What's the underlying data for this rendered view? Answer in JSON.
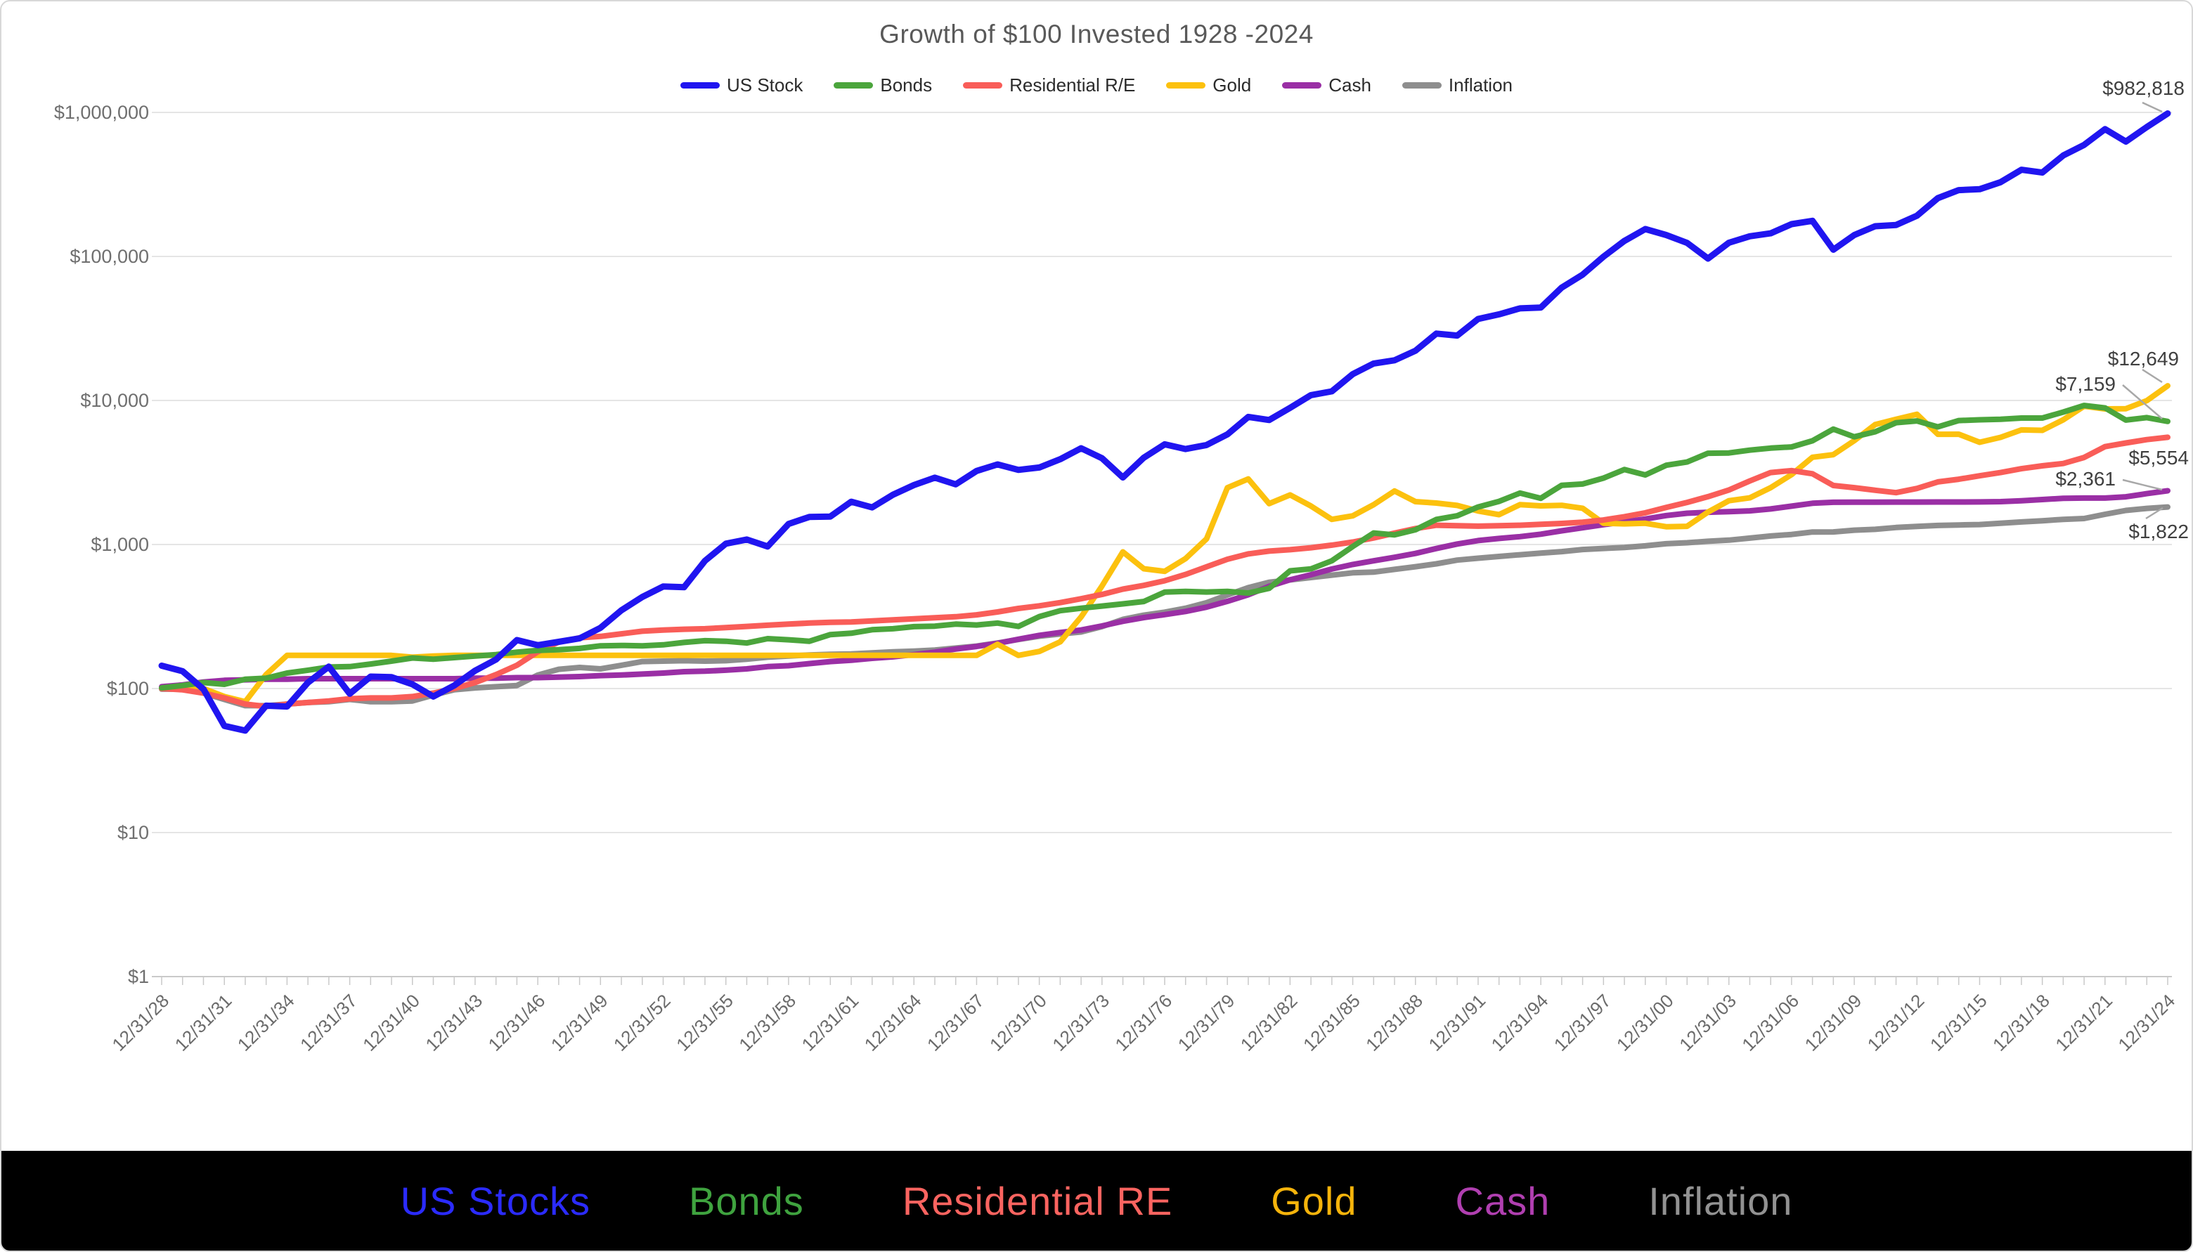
{
  "title": "Growth of $100  Invested 1928 -2024",
  "legend": [
    {
      "label": "US Stock",
      "color": "#2015f0"
    },
    {
      "label": "Bonds",
      "color": "#4ba53c"
    },
    {
      "label": "Residential R/E",
      "color": "#f95d58"
    },
    {
      "label": "Gold",
      "color": "#fcc10e"
    },
    {
      "label": "Cash",
      "color": "#9a2fa5"
    },
    {
      "label": "Inflation",
      "color": "#8e8e8e"
    }
  ],
  "footer": {
    "items": [
      {
        "label": "US Stocks",
        "color": "#2b2bff"
      },
      {
        "label": "Bonds",
        "color": "#3fa33f"
      },
      {
        "label": "Residential RE",
        "color": "#fb6460"
      },
      {
        "label": "Gold",
        "color": "#f6b40b"
      },
      {
        "label": "Cash",
        "color": "#b03fb0"
      },
      {
        "label": "Inflation",
        "color": "#929292"
      }
    ]
  },
  "chart_data": {
    "type": "line",
    "title": "Growth of $100  Invested 1928 -2024",
    "y_scale": "log",
    "ylim": [
      1,
      1000000
    ],
    "grid": true,
    "legend_position": "top",
    "start_year": 1928,
    "end_year": 2024,
    "y_gridlines": [
      {
        "value": 1,
        "label": "$1"
      },
      {
        "value": 10,
        "label": "$10"
      },
      {
        "value": 100,
        "label": "$100"
      },
      {
        "value": 1000,
        "label": "$1,000"
      },
      {
        "value": 10000,
        "label": "$10,000"
      },
      {
        "value": 100000,
        "label": "$100,000"
      },
      {
        "value": 1000000,
        "label": "$1,000,000"
      }
    ],
    "x_tick_labels": [
      "12/31/28",
      "12/31/31",
      "12/31/34",
      "12/31/37",
      "12/31/40",
      "12/31/43",
      "12/31/46",
      "12/31/49",
      "12/31/52",
      "12/31/55",
      "12/31/58",
      "12/31/61",
      "12/31/64",
      "12/31/67",
      "12/31/70",
      "12/31/73",
      "12/31/76",
      "12/31/79",
      "12/31/82",
      "12/31/85",
      "12/31/88",
      "12/31/91",
      "12/31/94",
      "12/31/97",
      "12/31/00",
      "12/31/03",
      "12/31/06",
      "12/31/09",
      "12/31/12",
      "12/31/15",
      "12/31/18",
      "12/31/21",
      "12/31/24"
    ],
    "series": [
      {
        "name": "US Stock",
        "color": "#2015f0",
        "values": [
          144,
          132,
          99,
          55,
          51,
          76,
          75,
          110,
          142,
          92,
          121,
          120,
          107,
          88,
          105,
          133,
          159,
          217,
          200,
          211,
          223,
          264,
          349,
          432,
          511,
          505,
          771,
          1014,
          1083,
          969,
          1388,
          1555,
          1564,
          1982,
          1809,
          2218,
          2587,
          2909,
          2616,
          3241,
          3599,
          3295,
          3426,
          3912,
          4658,
          3973,
          2921,
          4006,
          4960,
          4604,
          4907,
          5810,
          7690,
          7314,
          8884,
          10886,
          11566,
          15230,
          18062,
          19009,
          22155,
          29149,
          28237,
          36819,
          39621,
          43601,
          44175,
          60775,
          74718,
          99640,
          128108,
          155027,
          140934,
          124170,
          96730,
          124462,
          137999,
          144757,
          167601,
          176799,
          111386,
          140866,
          162078,
          165449,
          191918,
          254059,
          288870,
          292890,
          327937,
          399686,
          382162,
          502513,
          594970,
          765691,
          627102,
          791931,
          982818
        ]
      },
      {
        "name": "Bonds",
        "color": "#4ba53c",
        "values": [
          101,
          105,
          110,
          107,
          116,
          118,
          128,
          134,
          141,
          142,
          148,
          155,
          163,
          160,
          164,
          168,
          172,
          179,
          184,
          186,
          190,
          198,
          199,
          198,
          201,
          209,
          215,
          213,
          207,
          222,
          218,
          213,
          237,
          242,
          256,
          260,
          269,
          271,
          280,
          276,
          285,
          270,
          316,
          347,
          361,
          374,
          387,
          402,
          467,
          473,
          468,
          473,
          460,
          496,
          656,
          677,
          771,
          969,
          1202,
          1167,
          1266,
          1493,
          1584,
          1821,
          1994,
          2276,
          2093,
          2577,
          2630,
          2891,
          3314,
          3041,
          3549,
          3737,
          4303,
          4319,
          4522,
          4668,
          4759,
          5247,
          6325,
          5597,
          6062,
          7006,
          7210,
          6555,
          7253,
          7346,
          7398,
          7555,
          7552,
          8306,
          9229,
          8881,
          7312,
          7602,
          7159
        ]
      },
      {
        "name": "Residential R/E",
        "color": "#f95d58",
        "values": [
          100,
          98,
          93,
          86,
          78,
          75,
          78,
          80,
          82,
          85,
          86,
          86,
          88,
          93,
          100,
          110,
          125,
          145,
          180,
          210,
          225,
          230,
          240,
          250,
          255,
          258,
          260,
          265,
          270,
          275,
          280,
          285,
          288,
          290,
          295,
          300,
          305,
          310,
          315,
          325,
          340,
          360,
          375,
          395,
          420,
          450,
          490,
          520,
          560,
          620,
          700,
          790,
          860,
          900,
          920,
          950,
          990,
          1040,
          1110,
          1200,
          1290,
          1360,
          1350,
          1340,
          1350,
          1360,
          1380,
          1400,
          1430,
          1480,
          1560,
          1660,
          1810,
          1960,
          2150,
          2390,
          2760,
          3160,
          3260,
          3100,
          2570,
          2480,
          2380,
          2290,
          2450,
          2720,
          2840,
          3000,
          3160,
          3360,
          3520,
          3650,
          4020,
          4780,
          5070,
          5350,
          5554
        ]
      },
      {
        "name": "Gold",
        "color": "#fcc10e",
        "values": [
          100,
          100,
          100,
          88,
          81,
          125,
          170,
          170,
          170,
          170,
          170,
          170,
          165,
          168,
          170,
          170,
          170,
          170,
          170,
          170,
          170,
          170,
          170,
          170,
          170,
          170,
          170,
          170,
          170,
          170,
          170,
          170,
          170,
          170,
          170,
          170,
          170,
          170,
          170,
          170,
          203,
          170,
          181,
          211,
          314,
          515,
          889,
          679,
          651,
          798,
          1093,
          2477,
          2853,
          1923,
          2210,
          1850,
          1495,
          1582,
          1891,
          2354,
          1984,
          1940,
          1868,
          1709,
          1611,
          1890,
          1854,
          1872,
          1786,
          1404,
          1392,
          1404,
          1328,
          1338,
          1680,
          2014,
          2107,
          2482,
          3057,
          4034,
          4208,
          5261,
          6800,
          7407,
          8019,
          5827,
          5834,
          5128,
          5544,
          6246,
          6201,
          7341,
          9132,
          8737,
          8768,
          9978,
          12649
        ]
      },
      {
        "name": "Cash",
        "color": "#9a2fa5",
        "values": [
          103,
          106,
          111,
          114,
          115,
          116,
          116,
          117,
          117,
          117,
          117,
          117,
          117,
          117,
          117,
          118,
          118,
          119,
          119,
          120,
          121,
          123,
          124,
          126,
          128,
          131,
          132,
          134,
          137,
          142,
          144,
          149,
          154,
          157,
          162,
          166,
          172,
          179,
          188,
          196,
          206,
          220,
          234,
          245,
          255,
          272,
          293,
          311,
          326,
          343,
          367,
          403,
          448,
          512,
          569,
          617,
          676,
          727,
          771,
          815,
          867,
          938,
          1008,
          1065,
          1101,
          1134,
          1180,
          1245,
          1307,
          1373,
          1438,
          1503,
          1589,
          1648,
          1675,
          1692,
          1713,
          1765,
          1847,
          1933,
          1964,
          1967,
          1969,
          1970,
          1971,
          1972,
          1973,
          1975,
          1985,
          2013,
          2052,
          2094,
          2101,
          2102,
          2145,
          2254,
          2361
        ]
      },
      {
        "name": "Inflation",
        "color": "#8e8e8e",
        "values": [
          99,
          99,
          93,
          84,
          76,
          76,
          78,
          80,
          81,
          84,
          81,
          81,
          82,
          90,
          98,
          101,
          103,
          105,
          124,
          136,
          140,
          137,
          145,
          154,
          155,
          156,
          155,
          156,
          160,
          165,
          168,
          171,
          173,
          174,
          177,
          180,
          182,
          185,
          191,
          197,
          207,
          219,
          231,
          239,
          247,
          269,
          302,
          323,
          339,
          361,
          394,
          446,
          502,
          547,
          568,
          590,
          613,
          636,
          643,
          672,
          701,
          734,
          779,
          803,
          826,
          849,
          871,
          893,
          923,
          939,
          954,
          979,
          1012,
          1028,
          1053,
          1072,
          1107,
          1145,
          1174,
          1222,
          1223,
          1257,
          1275,
          1313,
          1336,
          1356,
          1366,
          1376,
          1405,
          1434,
          1462,
          1495,
          1515,
          1621,
          1725,
          1781,
          1822
        ]
      }
    ],
    "end_labels": [
      {
        "series": "US Stock",
        "text": "$982,818"
      },
      {
        "series": "Gold",
        "text": "$12,649"
      },
      {
        "series": "Bonds",
        "text": "$7,159"
      },
      {
        "series": "Residential R/E",
        "text": "$5,554"
      },
      {
        "series": "Cash",
        "text": "$2,361"
      },
      {
        "series": "Inflation",
        "text": "$1,822"
      }
    ]
  }
}
